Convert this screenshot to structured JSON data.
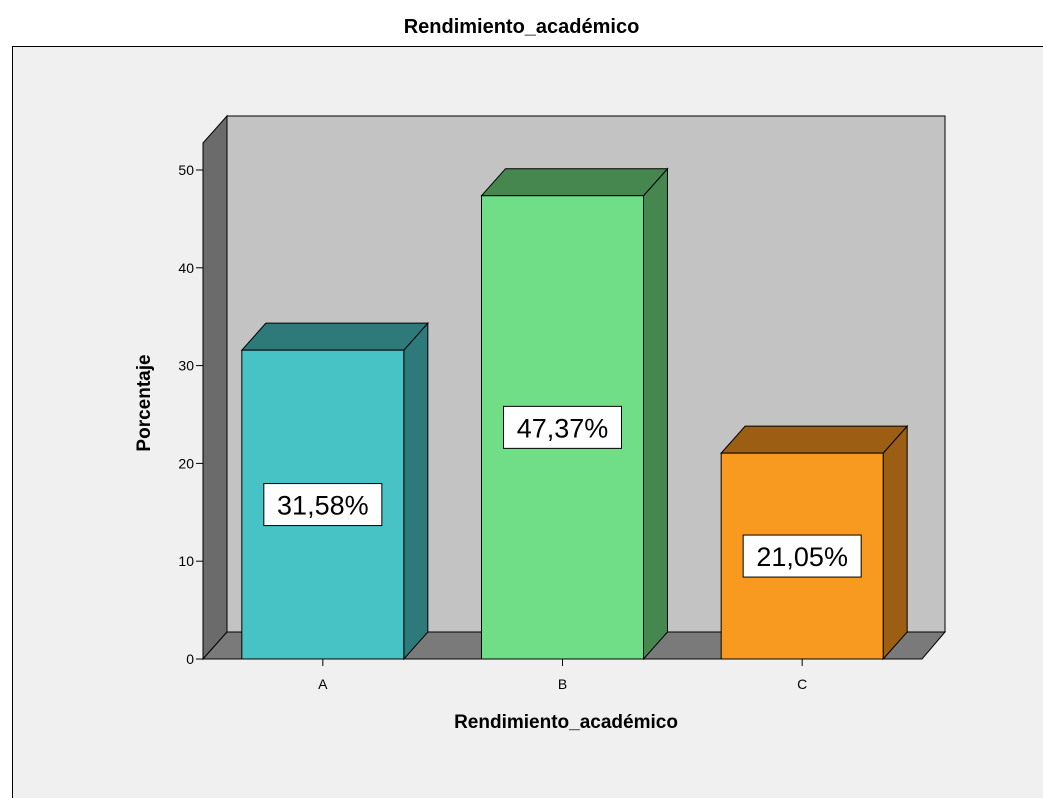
{
  "chart_data": {
    "type": "bar",
    "title": "Rendimiento_académico",
    "xlabel": "Rendimiento_académico",
    "ylabel": "Porcentaje",
    "categories": [
      "A",
      "B",
      "C"
    ],
    "values": [
      31.58,
      47.37,
      21.05
    ],
    "data_labels": [
      "31,58%",
      "47,37%",
      "21,05%"
    ],
    "yticks": [
      0,
      10,
      20,
      30,
      40,
      50
    ],
    "ylim": [
      0,
      55
    ],
    "three_d": true,
    "colors": {
      "plot_background": "#f0f0f0",
      "back_wall": "#c3c3c3",
      "side_wall": "#6b6b6b",
      "floor": "#7a7a7a",
      "bars": [
        {
          "front": "#48c3c5",
          "side": "#2e7a7b",
          "top": "#2e7a7b"
        },
        {
          "front": "#70de86",
          "side": "#45874f",
          "top": "#45874f"
        },
        {
          "front": "#f79a1f",
          "side": "#9c5e12",
          "top": "#9c5e12"
        }
      ]
    }
  }
}
